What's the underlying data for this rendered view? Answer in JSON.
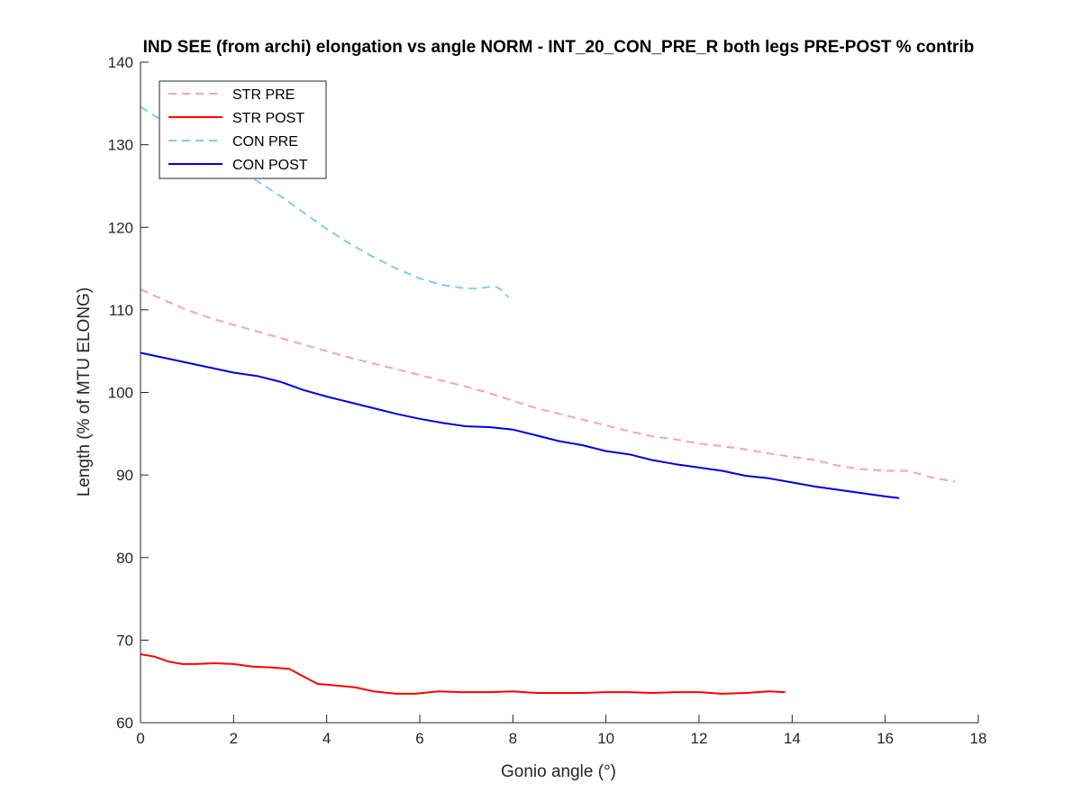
{
  "chart_data": {
    "type": "line",
    "title": "IND SEE (from archi) elongation vs angle NORM - INT_20_CON_PRE_R both legs PRE-POST % contrib",
    "xlabel": "Gonio angle (°)",
    "ylabel": "Length (% of MTU ELONG)",
    "xlim": [
      0,
      18
    ],
    "ylim": [
      60,
      140
    ],
    "xticks": [
      0,
      2,
      4,
      6,
      8,
      10,
      12,
      14,
      16,
      18
    ],
    "yticks": [
      60,
      70,
      80,
      90,
      100,
      110,
      120,
      130,
      140
    ],
    "grid": false,
    "legend_position": "top-left",
    "series": [
      {
        "name": "STR PRE",
        "color": "#f7a1c4",
        "dash": "dashed",
        "x": [
          0,
          0.5,
          1,
          1.5,
          2,
          2.5,
          3,
          3.5,
          4,
          4.5,
          5,
          5.5,
          6,
          6.5,
          7,
          7.5,
          8,
          8.5,
          9,
          9.5,
          10,
          10.5,
          11,
          11.5,
          12,
          12.5,
          13,
          13.5,
          14,
          14.5,
          15,
          15.5,
          16,
          16.5,
          17,
          17.5
        ],
        "y": [
          112.5,
          111.2,
          110.0,
          109.0,
          108.2,
          107.4,
          106.6,
          105.8,
          105.0,
          104.2,
          103.5,
          102.8,
          102.1,
          101.4,
          100.7,
          99.9,
          99.0,
          98.1,
          97.4,
          96.7,
          96.0,
          95.3,
          94.7,
          94.3,
          93.8,
          93.5,
          93.1,
          92.6,
          92.2,
          91.8,
          91.1,
          90.7,
          90.5,
          90.5,
          89.7,
          89.2
        ]
      },
      {
        "name": "STR POST",
        "color": "#ff0000",
        "dash": "solid",
        "x": [
          0,
          0.3,
          0.6,
          0.9,
          1.2,
          1.6,
          2.0,
          2.4,
          2.8,
          3.2,
          3.5,
          3.8,
          4.2,
          4.6,
          5.0,
          5.5,
          5.9,
          6.4,
          6.9,
          7.5,
          8.0,
          8.5,
          9.0,
          9.5,
          10.0,
          10.5,
          11.0,
          11.5,
          12.0,
          12.5,
          13.0,
          13.5,
          13.85
        ],
        "y": [
          68.3,
          68.0,
          67.4,
          67.1,
          67.1,
          67.2,
          67.1,
          66.8,
          66.7,
          66.5,
          65.6,
          64.7,
          64.5,
          64.3,
          63.8,
          63.5,
          63.5,
          63.8,
          63.7,
          63.7,
          63.8,
          63.6,
          63.6,
          63.6,
          63.7,
          63.7,
          63.6,
          63.7,
          63.7,
          63.5,
          63.6,
          63.8,
          63.7
        ]
      },
      {
        "name": "CON PRE",
        "color": "#87c9f0",
        "dash": "dashed",
        "x": [
          0,
          0.5,
          1,
          1.5,
          2,
          2.5,
          3,
          3.5,
          4,
          4.5,
          5,
          5.5,
          6,
          6.5,
          7,
          7.3,
          7.6,
          7.8,
          7.9
        ],
        "y": [
          134.6,
          132.8,
          131.0,
          129.2,
          127.4,
          125.6,
          123.8,
          121.8,
          119.8,
          118.0,
          116.4,
          115.0,
          113.8,
          113.0,
          112.6,
          112.6,
          112.9,
          112.3,
          111.5
        ]
      },
      {
        "name": "CON POST",
        "color": "#0000dd",
        "dash": "solid",
        "x": [
          0,
          0.5,
          1,
          1.5,
          2,
          2.5,
          3,
          3.5,
          4,
          4.5,
          5,
          5.5,
          6,
          6.5,
          7,
          7.5,
          8,
          8.5,
          9,
          9.5,
          10,
          10.5,
          11,
          11.5,
          12,
          12.5,
          13,
          13.5,
          14,
          14.5,
          15,
          15.5,
          16,
          16.3
        ],
        "y": [
          104.8,
          104.2,
          103.6,
          103.0,
          102.4,
          102.0,
          101.3,
          100.3,
          99.5,
          98.8,
          98.1,
          97.4,
          96.8,
          96.3,
          95.9,
          95.8,
          95.5,
          94.8,
          94.1,
          93.6,
          92.9,
          92.5,
          91.8,
          91.3,
          90.9,
          90.5,
          89.9,
          89.6,
          89.1,
          88.6,
          88.2,
          87.8,
          87.4,
          87.2
        ]
      }
    ]
  }
}
